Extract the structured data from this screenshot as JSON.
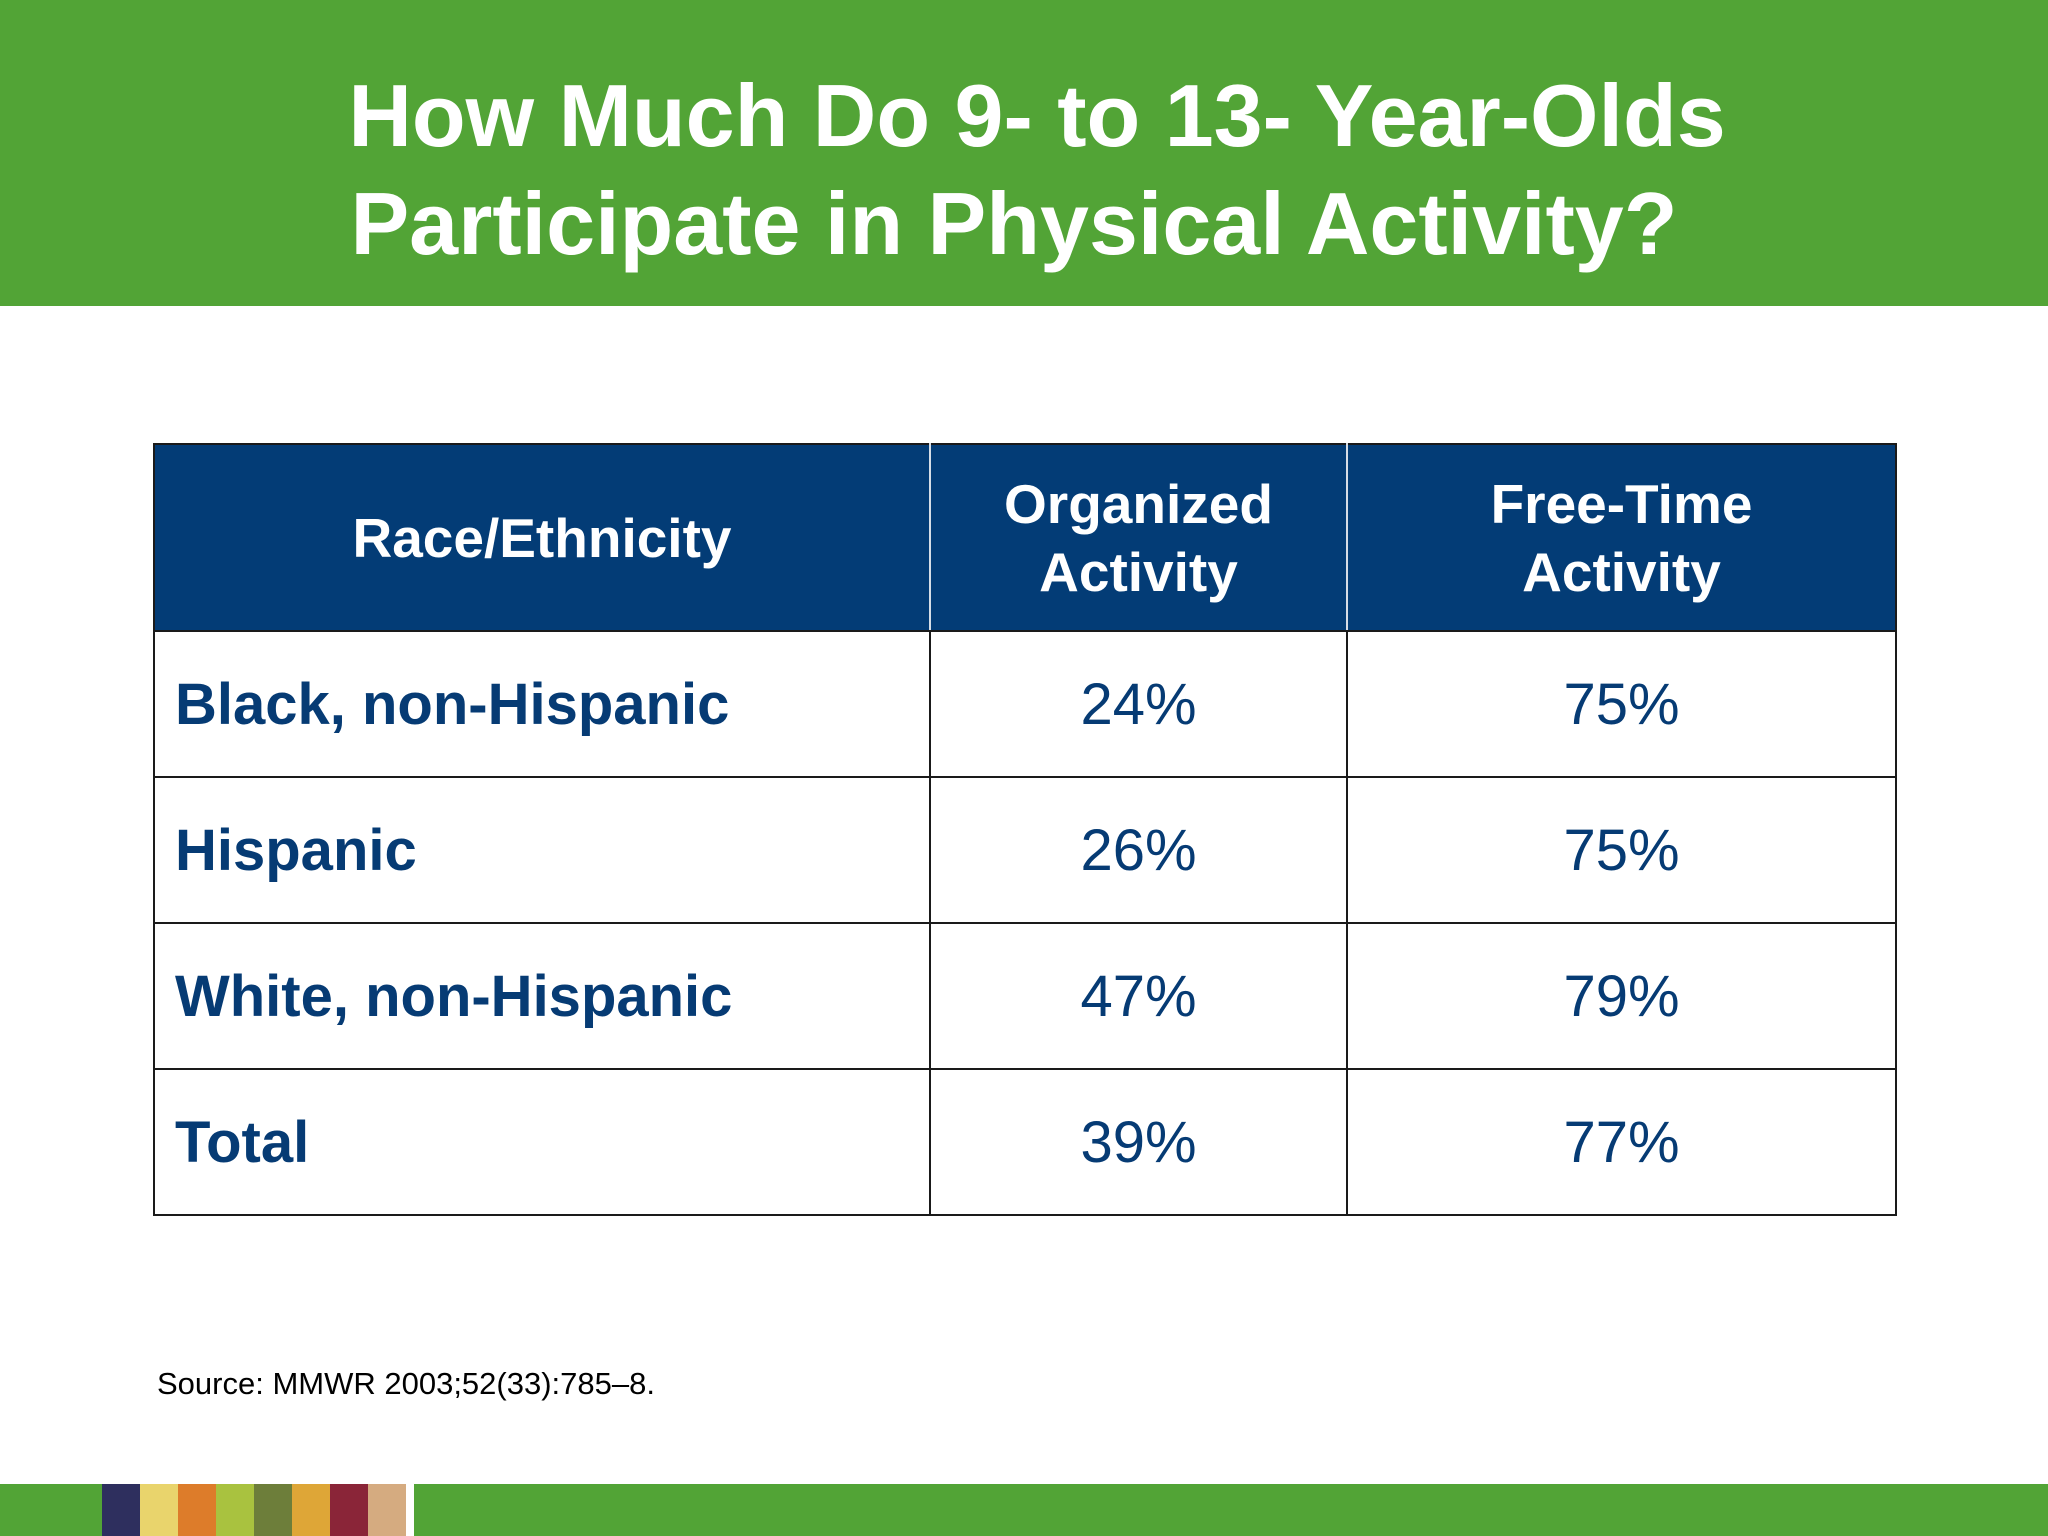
{
  "title": {
    "line1": "How Much Do 9- to 13- Year-Olds",
    "line2": "Participate in Physical Activity?"
  },
  "table": {
    "headers": [
      {
        "line1": "Race/Ethnicity",
        "line2": ""
      },
      {
        "line1": "Organized",
        "line2": "Activity"
      },
      {
        "line1": "Free-Time",
        "line2": "Activity"
      }
    ],
    "rows": [
      {
        "group": "Black, non-Hispanic",
        "organized": "24%",
        "free_time": "75%"
      },
      {
        "group": "Hispanic",
        "organized": "26%",
        "free_time": "75%"
      },
      {
        "group": "White, non-Hispanic",
        "organized": "47%",
        "free_time": "79%"
      },
      {
        "group": "Total",
        "organized": "39%",
        "free_time": "77%"
      }
    ]
  },
  "source": "Source: MMWR 2003;52(33):785–8.",
  "colors": {
    "title_bar": "#52a436",
    "header_fill": "#033c76",
    "body_text": "#063b74",
    "footer_swatches": [
      "#2e2f5e",
      "#e9d46c",
      "#dd7c2a",
      "#a9c23f",
      "#6d7e3a",
      "#dea637",
      "#8a2538",
      "#d5ab80"
    ]
  }
}
